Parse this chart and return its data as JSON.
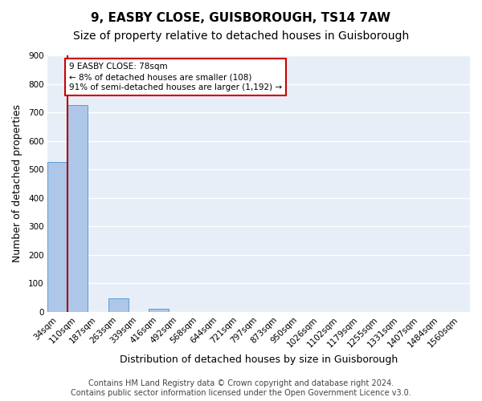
{
  "title": "9, EASBY CLOSE, GUISBOROUGH, TS14 7AW",
  "subtitle": "Size of property relative to detached houses in Guisborough",
  "xlabel": "Distribution of detached houses by size in Guisborough",
  "ylabel": "Number of detached properties",
  "categories": [
    "34sqm",
    "110sqm",
    "187sqm",
    "263sqm",
    "339sqm",
    "416sqm",
    "492sqm",
    "568sqm",
    "644sqm",
    "721sqm",
    "797sqm",
    "873sqm",
    "950sqm",
    "1026sqm",
    "1102sqm",
    "1179sqm",
    "1255sqm",
    "1331sqm",
    "1407sqm",
    "1484sqm",
    "1560sqm"
  ],
  "values": [
    525,
    725,
    0,
    48,
    0,
    10,
    0,
    0,
    0,
    0,
    0,
    0,
    0,
    0,
    0,
    0,
    0,
    0,
    0,
    0,
    0
  ],
  "bar_color": "#aec6e8",
  "bar_edge_color": "#5a9fd4",
  "background_color": "#e8eef7",
  "grid_color": "#ffffff",
  "annotation_line1": "9 EASBY CLOSE: 78sqm",
  "annotation_line2": "← 8% of detached houses are smaller (108)",
  "annotation_line3": "91% of semi-detached houses are larger (1,192) →",
  "annotation_box_color": "#ffffff",
  "annotation_box_edge_color": "#cc0000",
  "vline_color": "#aa0000",
  "footer": "Contains HM Land Registry data © Crown copyright and database right 2024.\nContains public sector information licensed under the Open Government Licence v3.0.",
  "ylim": [
    0,
    900
  ],
  "yticks": [
    0,
    100,
    200,
    300,
    400,
    500,
    600,
    700,
    800,
    900
  ],
  "title_fontsize": 11,
  "subtitle_fontsize": 10,
  "axis_label_fontsize": 9,
  "tick_fontsize": 7.5,
  "footer_fontsize": 7
}
